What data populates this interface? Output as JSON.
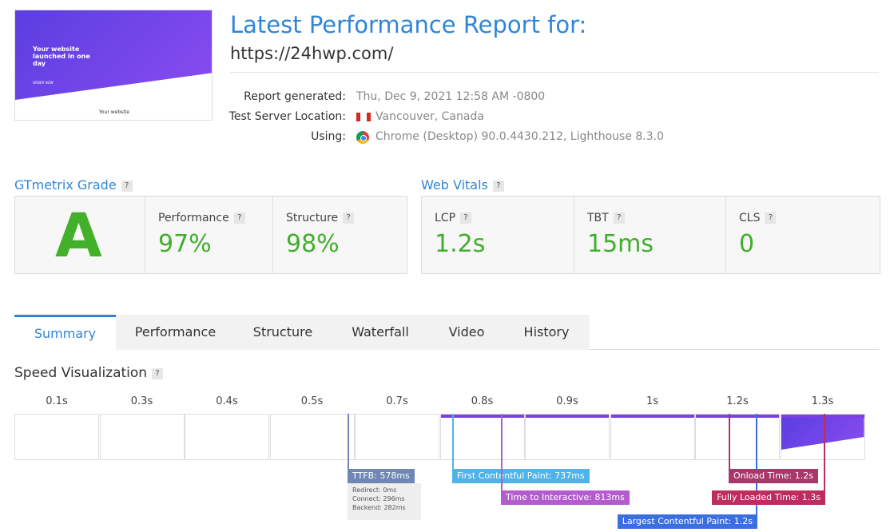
{
  "header": {
    "title": "Latest Performance Report for:",
    "url": "https://24hwp.com/"
  },
  "thumbnail": {
    "headline": "Your website launched in one day",
    "button": "ORDER NOW",
    "footer": "Your website"
  },
  "report": [
    {
      "label": "Report generated:",
      "value": "Thu, Dec 9, 2021 12:58 AM -0800"
    },
    {
      "label": "Test Server Location:",
      "value": "Vancouver, Canada"
    },
    {
      "label": "Using:",
      "value": "Chrome (Desktop) 90.0.4430.212, Lighthouse 8.3.0"
    }
  ],
  "help": "?",
  "grade": {
    "title": "GTmetrix Grade",
    "grade": "A",
    "metrics": [
      {
        "label": "Performance",
        "value": "97%"
      },
      {
        "label": "Structure",
        "value": "98%"
      }
    ]
  },
  "vitals": {
    "title": "Web Vitals",
    "metrics": [
      {
        "label": "LCP",
        "value": "1.2s"
      },
      {
        "label": "TBT",
        "value": "15ms"
      },
      {
        "label": "CLS",
        "value": "0"
      }
    ]
  },
  "tabs": [
    "Summary",
    "Performance",
    "Structure",
    "Waterfall",
    "Video",
    "History"
  ],
  "speed": {
    "title": "Speed Visualization",
    "times": [
      "0.1s",
      "0.3s",
      "0.4s",
      "0.5s",
      "0.7s",
      "0.8s",
      "0.9s",
      "1s",
      "1.2s",
      "1.3s"
    ],
    "markers": [
      {
        "label": "TTFB: 578ms",
        "details": [
          "Redirect: 0ms",
          "Connect: 296ms",
          "Backend: 282ms"
        ]
      },
      {
        "label": "First Contentful Paint: 737ms"
      },
      {
        "label": "Time to Interactive: 813ms"
      },
      {
        "label": "Largest Contentful Paint: 1.2s"
      },
      {
        "label": "Onload Time: 1.2s"
      },
      {
        "label": "Fully Loaded Time: 1.3s"
      }
    ]
  }
}
